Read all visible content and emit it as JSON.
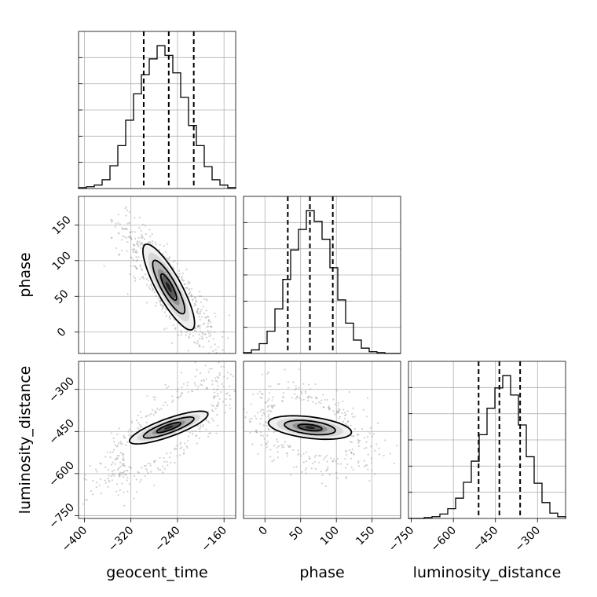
{
  "chart_data": {
    "type": "corner",
    "parameters": [
      {
        "name": "geocent_time",
        "xlabel": "geocent_time",
        "range": [
          -410,
          -140
        ],
        "ticks": [
          -400,
          -320,
          -240,
          -160
        ],
        "tick_labels": [
          "−400",
          "−320",
          "−240",
          "−160"
        ],
        "quantiles": [
          -298,
          -255,
          -212
        ],
        "hist_x_edges": [
          -410,
          -396.5,
          -383,
          -369.5,
          -356,
          -342.5,
          -329,
          -315.5,
          -302,
          -288.5,
          -275,
          -261.5,
          -248,
          -234.5,
          -221,
          -207.5,
          -194,
          -180.5,
          -167,
          -153.5,
          -140
        ],
        "hist_counts": [
          1,
          2,
          4,
          10,
          26,
          49,
          78,
          108,
          130,
          148,
          163,
          152,
          132,
          104,
          72,
          49,
          25,
          10,
          4,
          1
        ]
      },
      {
        "name": "phase",
        "ylabel": "phase",
        "xlabel": "phase",
        "range": [
          -30,
          190
        ],
        "ticks": [
          0,
          50,
          100,
          150
        ],
        "tick_labels": [
          "0",
          "50",
          "100",
          "150"
        ],
        "quantiles": [
          32,
          63,
          95
        ],
        "hist_x_edges": [
          -30,
          -19,
          -8,
          3,
          14,
          25,
          36,
          47,
          58,
          69,
          80,
          91,
          102,
          113,
          124,
          135,
          146,
          157,
          168,
          179,
          190
        ],
        "hist_counts": [
          1,
          4,
          11,
          25,
          50,
          83,
          116,
          139,
          160,
          148,
          128,
          96,
          60,
          34,
          15,
          6,
          2,
          1,
          0,
          0
        ]
      },
      {
        "name": "luminosity_distance",
        "ylabel": "luminosity_distance",
        "xlabel": "luminosity_distance",
        "range": [
          -760,
          -200
        ],
        "ticks": [
          -750,
          -600,
          -450,
          -300
        ],
        "tick_labels": [
          "−750",
          "−600",
          "−450",
          "−300"
        ],
        "quantiles": [
          -510,
          -436,
          -362
        ],
        "hist_x_edges": [
          -760,
          -732,
          -704,
          -676,
          -648,
          -620,
          -592,
          -564,
          -536,
          -508,
          -480,
          -452,
          -424,
          -396,
          -368,
          -340,
          -312,
          -284,
          -256,
          -228,
          -200
        ],
        "hist_counts": [
          0,
          0,
          1,
          2,
          5,
          11,
          23,
          41,
          65,
          95,
          125,
          148,
          162,
          140,
          106,
          70,
          40,
          18,
          6,
          2
        ]
      }
    ],
    "pairs": [
      {
        "x": "geocent_time",
        "y": "phase",
        "center": [
          -255,
          63
        ],
        "contours": [
          {
            "level": "inner",
            "half_width_along": 22,
            "half_width_across": 6,
            "angle_deg": -55
          },
          {
            "level": "middle",
            "half_width_along": 45,
            "half_width_across": 12,
            "angle_deg": -55
          },
          {
            "level": "outer",
            "half_width_along": 72,
            "half_width_across": 20,
            "angle_deg": -55
          }
        ]
      },
      {
        "x": "geocent_time",
        "y": "luminosity_distance",
        "center": [
          -255,
          -436
        ],
        "contours": [
          {
            "level": "inner",
            "half_width_along": 26,
            "half_width_across": 8,
            "angle_deg": 40
          },
          {
            "level": "middle",
            "half_width_along": 55,
            "half_width_across": 16,
            "angle_deg": 40
          },
          {
            "level": "outer",
            "half_width_along": 85,
            "half_width_across": 27,
            "angle_deg": 40
          }
        ]
      },
      {
        "x": "phase",
        "y": "luminosity_distance",
        "center": [
          63,
          -436
        ],
        "contours": [
          {
            "level": "inner",
            "half_width_along": 18,
            "half_width_across": 10,
            "angle_deg": -25
          },
          {
            "level": "middle",
            "half_width_along": 38,
            "half_width_across": 22,
            "angle_deg": -25
          },
          {
            "level": "outer",
            "half_width_along": 62,
            "half_width_across": 36,
            "angle_deg": -25
          }
        ]
      }
    ],
    "grid": true,
    "colors": {
      "line": "#000000",
      "grid": "#b0b0b0",
      "points": "#9a9a9a"
    }
  }
}
